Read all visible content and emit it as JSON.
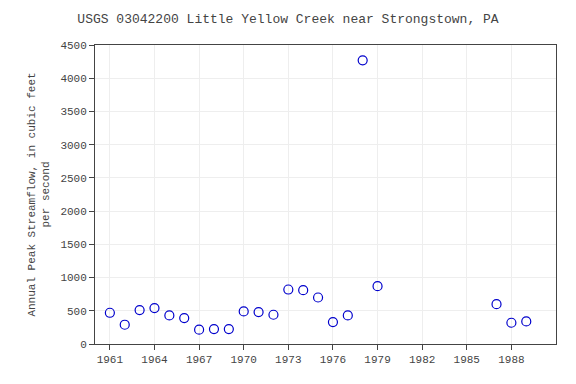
{
  "chart_data": {
    "type": "scatter",
    "title": "USGS 03042200 Little Yellow Creek near Strongstown, PA",
    "ylabel": "Annual Peak Streamflow, in cubic feet\nper second",
    "x": [
      1961,
      1962,
      1963,
      1964,
      1965,
      1966,
      1967,
      1968,
      1969,
      1970,
      1971,
      1972,
      1973,
      1974,
      1975,
      1976,
      1977,
      1978,
      1979,
      1987,
      1988,
      1989
    ],
    "values": [
      470,
      290,
      510,
      540,
      430,
      390,
      215,
      225,
      225,
      490,
      480,
      440,
      820,
      810,
      700,
      330,
      430,
      4270,
      870,
      600,
      320,
      340
    ],
    "color": "#0000cc",
    "marker": "circle-open",
    "xlim": [
      1960,
      1991
    ],
    "ylim": [
      0,
      4500
    ],
    "xticks": [
      1961,
      1964,
      1967,
      1970,
      1973,
      1976,
      1979,
      1982,
      1985,
      1988
    ],
    "yticks": [
      0,
      500,
      1000,
      1500,
      2000,
      2500,
      3000,
      3500,
      4000,
      4500
    ],
    "grid": true
  }
}
